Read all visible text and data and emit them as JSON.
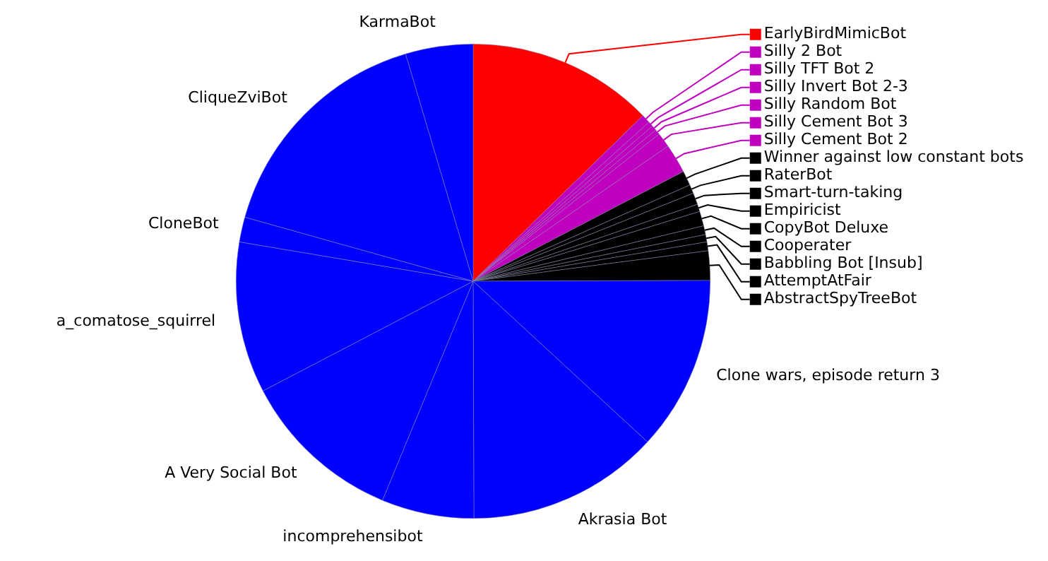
{
  "chart_data": {
    "type": "pie",
    "categories": [
      "EarlyBirdMimicBot",
      "Silly 2 Bot",
      "Silly TFT Bot 2",
      "Silly Invert Bot 2-3",
      "Silly Random Bot",
      "Silly Cement Bot 3",
      "Silly Cement Bot 2",
      "Winner against low constant bots",
      "RaterBot",
      "Smart-turn-taking",
      "Empiricist",
      "CopyBot Deluxe",
      "Cooperater",
      "Babbling Bot [Insub]",
      "AttemptAtFair",
      "AbstractSpyTreeBot",
      "Clone wars, episode return 3",
      "Akrasia Bot",
      "incomprehensibot",
      "A Very Social Bot",
      "a_comatose_squirrel",
      "CloneBot",
      "CliqueZviBot",
      "KarmaBot"
    ],
    "values": [
      12.7,
      0.6,
      0.35,
      0.35,
      0.35,
      1.0,
      2.0,
      1.0,
      0.6,
      0.8,
      0.5,
      1.0,
      0.6,
      0.5,
      0.6,
      2.0,
      11.9,
      13.1,
      6.3,
      11.1,
      10.3,
      1.7,
      16.05,
      4.6
    ],
    "colors": [
      "#ff0000",
      "#bf00bf",
      "#bf00bf",
      "#bf00bf",
      "#bf00bf",
      "#bf00bf",
      "#bf00bf",
      "#000000",
      "#000000",
      "#000000",
      "#000000",
      "#000000",
      "#000000",
      "#000000",
      "#000000",
      "#000000",
      "#0000ff",
      "#0000ff",
      "#0000ff",
      "#0000ff",
      "#0000ff",
      "#0000ff",
      "#0000ff",
      "#0000ff"
    ],
    "legend": "top right"
  }
}
